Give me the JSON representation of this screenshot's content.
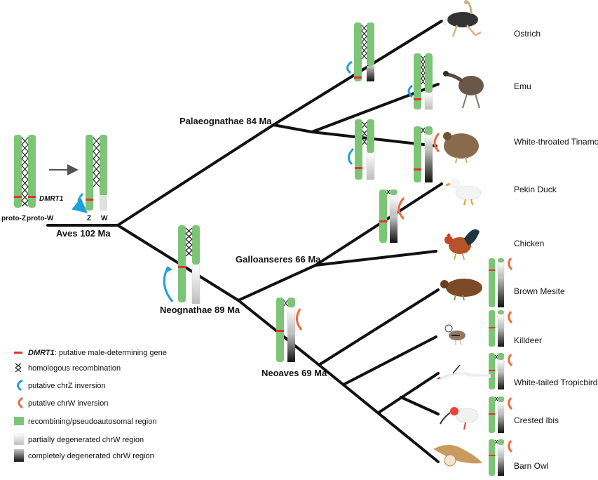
{
  "nodes": {
    "aves": "Aves 102 Ma",
    "palaeognathae": "Palaeognathae 84 Ma",
    "neognathae": "Neognathae 89 Ma",
    "galloanseres": "Galloanseres 66 Ma",
    "neoaves": "Neoaves 69 Ma"
  },
  "ancestral": {
    "proto_z": "proto-Z",
    "proto_w": "proto-W",
    "dmrt1": "DMRT1",
    "z": "Z",
    "w": "W"
  },
  "species": [
    {
      "id": "ostrich",
      "name": "Ostrich"
    },
    {
      "id": "emu",
      "name": "Emu"
    },
    {
      "id": "tinamou",
      "name": "White-throated Tinamou"
    },
    {
      "id": "duck",
      "name": "Pekin Duck"
    },
    {
      "id": "chicken",
      "name": "Chicken"
    },
    {
      "id": "mesite",
      "name": "Brown Mesite"
    },
    {
      "id": "killdeer",
      "name": "Killdeer"
    },
    {
      "id": "tropicbird",
      "name": "White-tailed Tropicbird"
    },
    {
      "id": "ibis",
      "name": "Crested Ibis"
    },
    {
      "id": "owl",
      "name": "Barn Owl"
    }
  ],
  "legend": {
    "dmrt1_name": "DMRT1",
    "dmrt1_desc": ": putative male-determining gene",
    "recombination": "homologous recombination",
    "z_inversion": "putative chrZ inversion",
    "w_inversion": "putative chrW inversion",
    "recombining": "recombining/pseudoautosomal region",
    "partial": "partially degenerated chrW region",
    "complete": "completely degenerated chrW region"
  },
  "colors": {
    "branch": "#111111",
    "chromosome_green": "#7cc576",
    "dmrt1_red": "#e8322b",
    "z_inversion_blue": "#1fa0d8",
    "w_inversion_orange": "#ef6a3a"
  }
}
